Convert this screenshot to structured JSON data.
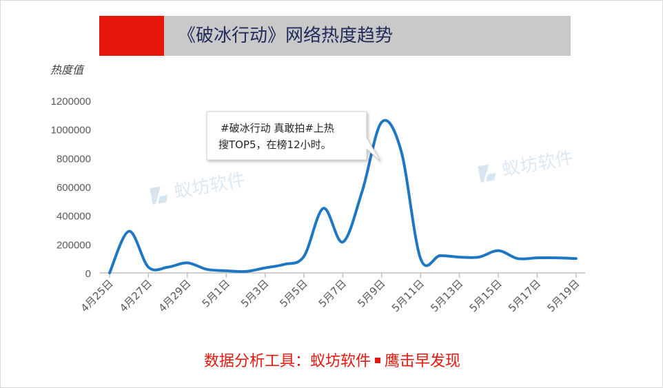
{
  "chart_data": {
    "type": "line",
    "title": "《破冰行动》网络热度趋势",
    "ylabel": "热度值",
    "xlabel": "",
    "ylim": [
      0,
      1200000
    ],
    "yticks": [
      "0",
      "200000",
      "400000",
      "600000",
      "800000",
      "1000000",
      "1200000"
    ],
    "xtick_labels": [
      "4月25日",
      "4月27日",
      "4月29日",
      "5月1日",
      "5月3日",
      "5月5日",
      "5月7日",
      "5月9日",
      "5月11日",
      "5月13日",
      "5月15日",
      "5月17日",
      "5月19日"
    ],
    "grid": false,
    "legend": "none",
    "line_color": "#1f77c4",
    "x": [
      "4月25日",
      "4月26日",
      "4月27日",
      "4月28日",
      "4月29日",
      "4月30日",
      "5月1日",
      "5月2日",
      "5月3日",
      "5月4日",
      "5月5日",
      "5月6日",
      "5月7日",
      "5月8日",
      "5月9日",
      "5月10日",
      "5月11日",
      "5月12日",
      "5月13日",
      "5月14日",
      "5月15日",
      "5月16日",
      "5月17日",
      "5月18日",
      "5月19日"
    ],
    "series": [
      {
        "values": [
          0,
          290000,
          40000,
          40000,
          70000,
          25000,
          15000,
          10000,
          35000,
          60000,
          115000,
          450000,
          215000,
          570000,
          1050000,
          850000,
          100000,
          120000,
          110000,
          110000,
          155000,
          100000,
          105000,
          105000,
          100000
        ]
      }
    ],
    "annotations": [
      {
        "text_line1": "#破冰行动 真敢拍#上热",
        "text_line2": "搜TOP5，在榜12小时。",
        "target_x": "5月10日"
      }
    ]
  },
  "watermark": "蚁坊软件",
  "footer": {
    "prefix": "数据分析工具：蚁坊软件",
    "suffix": "鹰击早发现"
  },
  "colors": {
    "title_red": "#e8170e",
    "title_bar": "#c9c9c9",
    "title_text": "#1f2a5a",
    "footer_text": "#e8170e",
    "axis": "#bfbfbf",
    "tick_text": "#595959"
  }
}
